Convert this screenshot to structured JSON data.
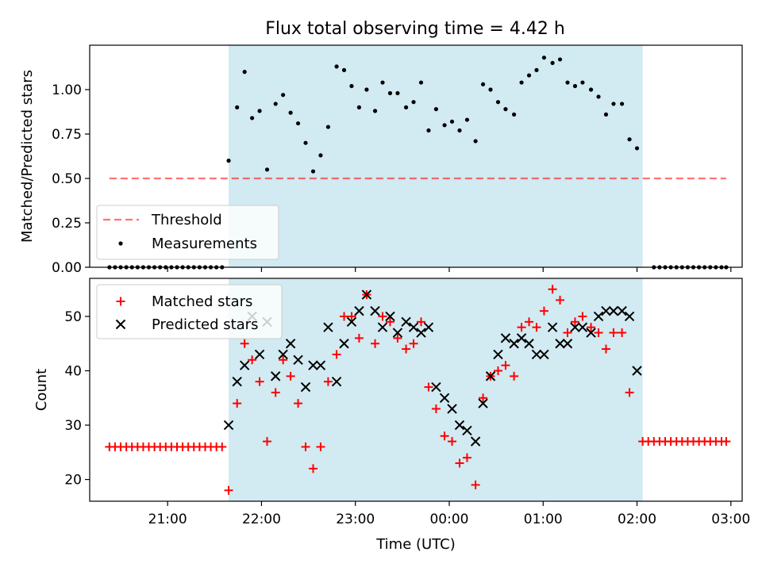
{
  "figure": {
    "title": "Flux total observing time = 4.42 h",
    "xlabel": "Time (UTC)"
  },
  "colors": {
    "highlight": "#add8e6",
    "threshold": "#ff0000",
    "matched": "#ff0000",
    "predicted": "#000000",
    "measurements": "#000000"
  },
  "chart_data": [
    {
      "type": "scatter",
      "panel": "top",
      "ylabel": "Matched/Predicted stars",
      "x_unit": "hours since 20:00 UTC (axis shows clock time)",
      "xlim": [
        0.17,
        7.12
      ],
      "ylim": [
        0.0,
        1.25
      ],
      "yticks": [
        0.0,
        0.25,
        0.5,
        0.75,
        1.0
      ],
      "ytick_labels": [
        "0.00",
        "0.25",
        "0.50",
        "0.75",
        "1.00"
      ],
      "highlight_span": [
        1.65,
        6.06
      ],
      "legend": {
        "location": "lower-left",
        "entries": [
          "Threshold",
          "Measurements"
        ]
      },
      "threshold": {
        "name": "Threshold",
        "style": "dashed",
        "x": [
          0.38,
          6.95
        ],
        "y": 0.5
      },
      "series": [
        {
          "name": "Measurements",
          "marker": "dot",
          "points": [
            [
              0.38,
              0
            ],
            [
              0.44,
              0
            ],
            [
              0.5,
              0
            ],
            [
              0.56,
              0
            ],
            [
              0.62,
              0
            ],
            [
              0.68,
              0
            ],
            [
              0.74,
              0
            ],
            [
              0.8,
              0
            ],
            [
              0.86,
              0
            ],
            [
              0.92,
              0
            ],
            [
              0.98,
              0
            ],
            [
              1.04,
              0
            ],
            [
              1.1,
              0
            ],
            [
              1.16,
              0
            ],
            [
              1.22,
              0
            ],
            [
              1.28,
              0
            ],
            [
              1.34,
              0
            ],
            [
              1.4,
              0
            ],
            [
              1.46,
              0
            ],
            [
              1.52,
              0
            ],
            [
              1.58,
              0
            ],
            [
              1.65,
              0.6
            ],
            [
              1.74,
              0.9
            ],
            [
              1.82,
              1.1
            ],
            [
              1.9,
              0.84
            ],
            [
              1.98,
              0.88
            ],
            [
              2.06,
              0.55
            ],
            [
              2.15,
              0.92
            ],
            [
              2.23,
              0.97
            ],
            [
              2.31,
              0.87
            ],
            [
              2.39,
              0.81
            ],
            [
              2.47,
              0.7
            ],
            [
              2.55,
              0.54
            ],
            [
              2.63,
              0.63
            ],
            [
              2.71,
              0.79
            ],
            [
              2.8,
              1.13
            ],
            [
              2.88,
              1.11
            ],
            [
              2.96,
              1.02
            ],
            [
              3.04,
              0.9
            ],
            [
              3.12,
              1.0
            ],
            [
              3.21,
              0.88
            ],
            [
              3.29,
              1.04
            ],
            [
              3.37,
              0.98
            ],
            [
              3.45,
              0.98
            ],
            [
              3.54,
              0.9
            ],
            [
              3.62,
              0.93
            ],
            [
              3.7,
              1.04
            ],
            [
              3.78,
              0.77
            ],
            [
              3.86,
              0.89
            ],
            [
              3.95,
              0.8
            ],
            [
              4.03,
              0.82
            ],
            [
              4.11,
              0.77
            ],
            [
              4.19,
              0.83
            ],
            [
              4.28,
              0.71
            ],
            [
              4.36,
              1.03
            ],
            [
              4.44,
              1.0
            ],
            [
              4.52,
              0.93
            ],
            [
              4.6,
              0.89
            ],
            [
              4.69,
              0.86
            ],
            [
              4.77,
              1.04
            ],
            [
              4.85,
              1.08
            ],
            [
              4.93,
              1.11
            ],
            [
              5.01,
              1.18
            ],
            [
              5.1,
              1.15
            ],
            [
              5.18,
              1.17
            ],
            [
              5.26,
              1.04
            ],
            [
              5.34,
              1.02
            ],
            [
              5.42,
              1.04
            ],
            [
              5.51,
              1.0
            ],
            [
              5.59,
              0.96
            ],
            [
              5.67,
              0.86
            ],
            [
              5.75,
              0.92
            ],
            [
              5.84,
              0.92
            ],
            [
              5.92,
              0.72
            ],
            [
              6.0,
              0.67
            ],
            [
              6.18,
              0
            ],
            [
              6.24,
              0
            ],
            [
              6.3,
              0
            ],
            [
              6.36,
              0
            ],
            [
              6.42,
              0
            ],
            [
              6.48,
              0
            ],
            [
              6.54,
              0
            ],
            [
              6.6,
              0
            ],
            [
              6.66,
              0
            ],
            [
              6.72,
              0
            ],
            [
              6.78,
              0
            ],
            [
              6.84,
              0
            ],
            [
              6.9,
              0
            ],
            [
              6.95,
              0
            ]
          ]
        }
      ]
    },
    {
      "type": "scatter",
      "panel": "bottom",
      "ylabel": "Count",
      "x_unit": "hours since 20:00 UTC (axis shows clock time)",
      "xlim": [
        0.17,
        7.12
      ],
      "ylim": [
        16,
        57
      ],
      "yticks": [
        20,
        30,
        40,
        50
      ],
      "xticks": [
        1,
        2,
        3,
        4,
        5,
        6,
        7
      ],
      "xtick_labels": [
        "21:00",
        "22:00",
        "23:00",
        "00:00",
        "01:00",
        "02:00",
        "03:00"
      ],
      "highlight_span": [
        1.65,
        6.06
      ],
      "legend": {
        "location": "upper-left",
        "entries": [
          "Matched stars",
          "Predicted stars"
        ]
      },
      "series": [
        {
          "name": "Matched stars",
          "marker": "plus",
          "points": [
            [
              0.38,
              26
            ],
            [
              0.44,
              26
            ],
            [
              0.5,
              26
            ],
            [
              0.56,
              26
            ],
            [
              0.62,
              26
            ],
            [
              0.68,
              26
            ],
            [
              0.74,
              26
            ],
            [
              0.8,
              26
            ],
            [
              0.86,
              26
            ],
            [
              0.92,
              26
            ],
            [
              0.98,
              26
            ],
            [
              1.04,
              26
            ],
            [
              1.1,
              26
            ],
            [
              1.16,
              26
            ],
            [
              1.22,
              26
            ],
            [
              1.28,
              26
            ],
            [
              1.34,
              26
            ],
            [
              1.4,
              26
            ],
            [
              1.46,
              26
            ],
            [
              1.52,
              26
            ],
            [
              1.58,
              26
            ],
            [
              1.65,
              18
            ],
            [
              1.74,
              34
            ],
            [
              1.82,
              45
            ],
            [
              1.9,
              42
            ],
            [
              1.98,
              38
            ],
            [
              2.06,
              27
            ],
            [
              2.15,
              36
            ],
            [
              2.23,
              42
            ],
            [
              2.31,
              39
            ],
            [
              2.39,
              34
            ],
            [
              2.47,
              26
            ],
            [
              2.55,
              22
            ],
            [
              2.63,
              26
            ],
            [
              2.71,
              38
            ],
            [
              2.8,
              43
            ],
            [
              2.88,
              50
            ],
            [
              2.96,
              50
            ],
            [
              3.04,
              46
            ],
            [
              3.12,
              54
            ],
            [
              3.21,
              45
            ],
            [
              3.29,
              50
            ],
            [
              3.37,
              49
            ],
            [
              3.45,
              46
            ],
            [
              3.54,
              44
            ],
            [
              3.62,
              45
            ],
            [
              3.7,
              49
            ],
            [
              3.78,
              37
            ],
            [
              3.86,
              33
            ],
            [
              3.95,
              28
            ],
            [
              4.03,
              27
            ],
            [
              4.11,
              23
            ],
            [
              4.19,
              24
            ],
            [
              4.28,
              19
            ],
            [
              4.36,
              35
            ],
            [
              4.44,
              39
            ],
            [
              4.52,
              40
            ],
            [
              4.6,
              41
            ],
            [
              4.69,
              39
            ],
            [
              4.77,
              48
            ],
            [
              4.85,
              49
            ],
            [
              4.93,
              48
            ],
            [
              5.01,
              51
            ],
            [
              5.1,
              55
            ],
            [
              5.18,
              53
            ],
            [
              5.26,
              47
            ],
            [
              5.34,
              49
            ],
            [
              5.42,
              50
            ],
            [
              5.51,
              48
            ],
            [
              5.59,
              47
            ],
            [
              5.67,
              44
            ],
            [
              5.75,
              47
            ],
            [
              5.84,
              47
            ],
            [
              5.92,
              36
            ],
            [
              6.06,
              27
            ],
            [
              6.12,
              27
            ],
            [
              6.18,
              27
            ],
            [
              6.24,
              27
            ],
            [
              6.3,
              27
            ],
            [
              6.36,
              27
            ],
            [
              6.42,
              27
            ],
            [
              6.48,
              27
            ],
            [
              6.54,
              27
            ],
            [
              6.6,
              27
            ],
            [
              6.66,
              27
            ],
            [
              6.72,
              27
            ],
            [
              6.78,
              27
            ],
            [
              6.84,
              27
            ],
            [
              6.9,
              27
            ],
            [
              6.95,
              27
            ]
          ]
        },
        {
          "name": "Predicted stars",
          "marker": "x",
          "points": [
            [
              1.65,
              30
            ],
            [
              1.74,
              38
            ],
            [
              1.82,
              41
            ],
            [
              1.9,
              50
            ],
            [
              1.98,
              43
            ],
            [
              2.06,
              49
            ],
            [
              2.15,
              39
            ],
            [
              2.23,
              43
            ],
            [
              2.31,
              45
            ],
            [
              2.39,
              42
            ],
            [
              2.47,
              37
            ],
            [
              2.55,
              41
            ],
            [
              2.63,
              41
            ],
            [
              2.71,
              48
            ],
            [
              2.8,
              38
            ],
            [
              2.88,
              45
            ],
            [
              2.96,
              49
            ],
            [
              3.04,
              51
            ],
            [
              3.12,
              54
            ],
            [
              3.21,
              51
            ],
            [
              3.29,
              48
            ],
            [
              3.37,
              50
            ],
            [
              3.45,
              47
            ],
            [
              3.54,
              49
            ],
            [
              3.62,
              48
            ],
            [
              3.7,
              47
            ],
            [
              3.78,
              48
            ],
            [
              3.86,
              37
            ],
            [
              3.95,
              35
            ],
            [
              4.03,
              33
            ],
            [
              4.11,
              30
            ],
            [
              4.19,
              29
            ],
            [
              4.28,
              27
            ],
            [
              4.36,
              34
            ],
            [
              4.44,
              39
            ],
            [
              4.52,
              43
            ],
            [
              4.6,
              46
            ],
            [
              4.69,
              45
            ],
            [
              4.77,
              46
            ],
            [
              4.85,
              45
            ],
            [
              4.93,
              43
            ],
            [
              5.01,
              43
            ],
            [
              5.1,
              48
            ],
            [
              5.18,
              45
            ],
            [
              5.26,
              45
            ],
            [
              5.34,
              48
            ],
            [
              5.42,
              48
            ],
            [
              5.51,
              47
            ],
            [
              5.59,
              50
            ],
            [
              5.67,
              51
            ],
            [
              5.75,
              51
            ],
            [
              5.84,
              51
            ],
            [
              5.92,
              50
            ],
            [
              6.0,
              40
            ]
          ]
        }
      ]
    }
  ]
}
